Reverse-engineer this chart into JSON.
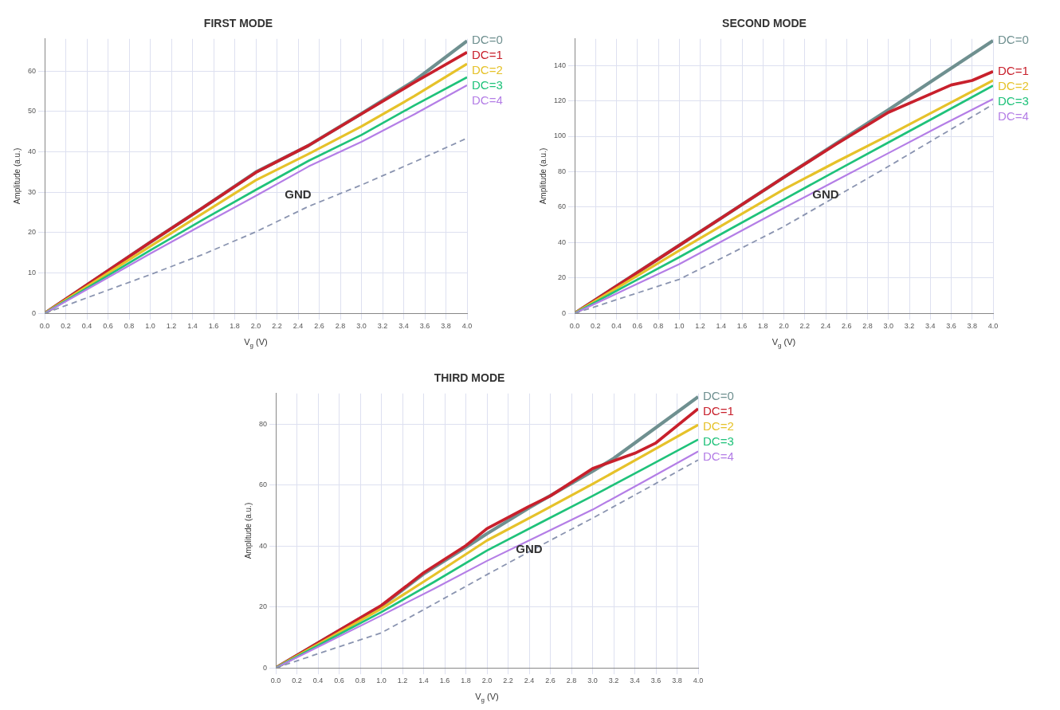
{
  "chart_data": [
    {
      "type": "line",
      "title": "FIRST MODE",
      "xlabel": "V$_{g}$ (V)",
      "ylabel": "Amplitude (a.u.)",
      "x": [
        0,
        0.5,
        1,
        1.5,
        2,
        2.5,
        3,
        3.5,
        4
      ],
      "xlim": [
        0,
        4
      ],
      "xticks": [
        {
          "value": 0,
          "label": "0.0"
        },
        0.2,
        0.4,
        0.6,
        0.8,
        {
          "value": 1,
          "label": "1.0"
        },
        1.2,
        1.4,
        1.6,
        1.8,
        {
          "value": 2,
          "label": "2.0"
        },
        2.2,
        2.4,
        2.6,
        2.8,
        {
          "value": 3,
          "label": "3.0"
        },
        3.2,
        3.4,
        3.6,
        3.8,
        {
          "value": 4,
          "label": "4.0"
        }
      ],
      "ylim": [
        0,
        68
      ],
      "yticks": [
        0,
        10,
        20,
        30,
        40,
        50,
        60
      ],
      "grid": true,
      "marker": "none",
      "legend": false,
      "annotations": [
        "GND"
      ],
      "series": [
        {
          "name": "DC=0",
          "color": "#6f9090",
          "values": [
            0,
            8.8,
            17.6,
            26.2,
            35,
            41.6,
            49.5,
            57.6,
            67.5
          ]
        },
        {
          "name": "DC=1",
          "color": "#c8202c",
          "values": [
            0,
            8.8,
            17.6,
            26.2,
            34.9,
            41.6,
            49.4,
            57.2,
            64.7
          ]
        },
        {
          "name": "DC=2",
          "color": "#e6c22a",
          "values": [
            0,
            8.3,
            16.6,
            24.8,
            33,
            39.5,
            46.3,
            53.8,
            61.8
          ]
        },
        {
          "name": "DC=3",
          "color": "#1fc27a",
          "values": [
            0,
            7.8,
            15.6,
            23.2,
            30.6,
            37.8,
            44.2,
            51.5,
            58.5
          ]
        },
        {
          "name": "DC=4",
          "color": "#b47ee6",
          "values": [
            0,
            7.4,
            14.8,
            22,
            29.1,
            36.4,
            42.5,
            49.3,
            56.5
          ]
        },
        {
          "color": "#8a94b0",
          "line_style": "dashed",
          "values": [
            0,
            4.8,
            9.6,
            14.6,
            20.2,
            26.5,
            31.8,
            37.5,
            43.4
          ]
        }
      ]
    },
    {
      "type": "line",
      "title": "SECOND MODE",
      "xlabel": "V$_{g}$ (V)",
      "ylabel": "Amplitude (a.u.)",
      "x": [
        0,
        0.5,
        1,
        1.5,
        2,
        2.5,
        3,
        3.5,
        4
      ],
      "xlim": [
        0,
        4
      ],
      "xticks": [
        {
          "value": 0,
          "label": "0.0"
        },
        0.2,
        0.4,
        0.6,
        0.8,
        {
          "value": 1,
          "label": "1.0"
        },
        1.2,
        1.4,
        1.6,
        1.8,
        {
          "value": 2,
          "label": "2.0"
        },
        2.2,
        2.4,
        2.6,
        2.8,
        {
          "value": 3,
          "label": "3.0"
        },
        3.2,
        3.4,
        3.6,
        3.8,
        {
          "value": 4,
          "label": "4.0"
        }
      ],
      "ylim": [
        0,
        155
      ],
      "yticks": [
        0,
        20,
        40,
        60,
        80,
        100,
        120,
        140
      ],
      "grid": true,
      "marker": "none",
      "legend": false,
      "annotations": [
        "GND"
      ],
      "series": [
        {
          "name": "DC=0",
          "color": "#6f9090",
          "values": [
            0,
            19.2,
            38.4,
            57.6,
            76.8,
            96,
            115,
            134.5,
            154
          ]
        },
        {
          "name": "DC=1",
          "color": "#c8202c",
          "x": [
            0,
            0.5,
            1,
            1.5,
            2,
            2.5,
            3,
            3.4,
            3.6,
            3.8,
            4
          ],
          "values": [
            0,
            19.2,
            38.4,
            57.6,
            76.8,
            95.5,
            113.5,
            123.8,
            129,
            131.5,
            136.6
          ]
        },
        {
          "name": "DC=2",
          "color": "#e6c22a",
          "values": [
            0,
            17.7,
            35.5,
            52.8,
            70,
            85.5,
            100.5,
            116,
            131.5
          ]
        },
        {
          "name": "DC=3",
          "color": "#1fc27a",
          "values": [
            0,
            15.9,
            31.7,
            48,
            64.3,
            80.5,
            96.5,
            112.5,
            128.6
          ]
        },
        {
          "name": "DC=4",
          "color": "#b47ee6",
          "values": [
            0,
            13.9,
            27.8,
            43.6,
            59.5,
            75,
            90.5,
            106,
            121
          ]
        },
        {
          "color": "#8a94b0",
          "line_style": "dashed",
          "values": [
            0,
            9.6,
            19.2,
            34,
            49,
            66,
            83,
            100.5,
            118
          ]
        }
      ]
    },
    {
      "type": "line",
      "title": "THIRD MODE",
      "xlabel": "V$_{g}$ (V)",
      "ylabel": "Amplitude (a.u.)",
      "x": [
        0,
        0.5,
        1,
        1.5,
        2,
        2.5,
        3,
        3.5,
        4
      ],
      "xlim": [
        0,
        4
      ],
      "xticks": [
        {
          "value": 0,
          "label": "0.0"
        },
        0.2,
        0.4,
        0.6,
        0.8,
        {
          "value": 1,
          "label": "1.0"
        },
        1.2,
        1.4,
        1.6,
        1.8,
        {
          "value": 2,
          "label": "2.0"
        },
        2.2,
        2.4,
        2.6,
        2.8,
        {
          "value": 3,
          "label": "3.0"
        },
        3.2,
        3.4,
        3.6,
        3.8,
        {
          "value": 4,
          "label": "4.0"
        }
      ],
      "ylim": [
        0,
        90
      ],
      "yticks": [
        0,
        20,
        40,
        60,
        80
      ],
      "grid": true,
      "marker": "none",
      "legend": false,
      "annotations": [
        "GND"
      ],
      "series": [
        {
          "name": "DC=0",
          "color": "#6f9090",
          "x": [
            0,
            0.5,
            1,
            1.4,
            1.8,
            2,
            2.4,
            3,
            3.2,
            4
          ],
          "values": [
            0,
            10.2,
            20.3,
            30.8,
            39.5,
            44,
            52.5,
            64.5,
            68.7,
            88.9
          ]
        },
        {
          "name": "DC=1",
          "color": "#c8202c",
          "x": [
            0,
            0.5,
            1,
            1.4,
            1.8,
            2,
            2.4,
            2.6,
            3,
            3.4,
            3.6,
            4
          ],
          "values": [
            0,
            10.3,
            20.5,
            31.2,
            40.1,
            45.7,
            53,
            56.4,
            65.4,
            70.4,
            73.8,
            85
          ]
        },
        {
          "name": "DC=2",
          "color": "#e6c22a",
          "values": [
            0,
            9.7,
            19.4,
            30.5,
            41.8,
            51,
            60.3,
            70,
            79.7
          ]
        },
        {
          "name": "DC=3",
          "color": "#1fc27a",
          "values": [
            0,
            9.2,
            18.3,
            28.2,
            38.5,
            47.5,
            56.4,
            65.6,
            74.9
          ]
        },
        {
          "name": "DC=4",
          "color": "#b47ee6",
          "values": [
            0,
            8.6,
            17.2,
            26,
            35.1,
            43.5,
            51.9,
            61.4,
            71
          ]
        },
        {
          "color": "#8a94b0",
          "line_style": "dashed",
          "values": [
            0,
            5.8,
            11.5,
            21,
            30.6,
            40,
            49.1,
            58.6,
            68.2
          ]
        }
      ]
    }
  ]
}
